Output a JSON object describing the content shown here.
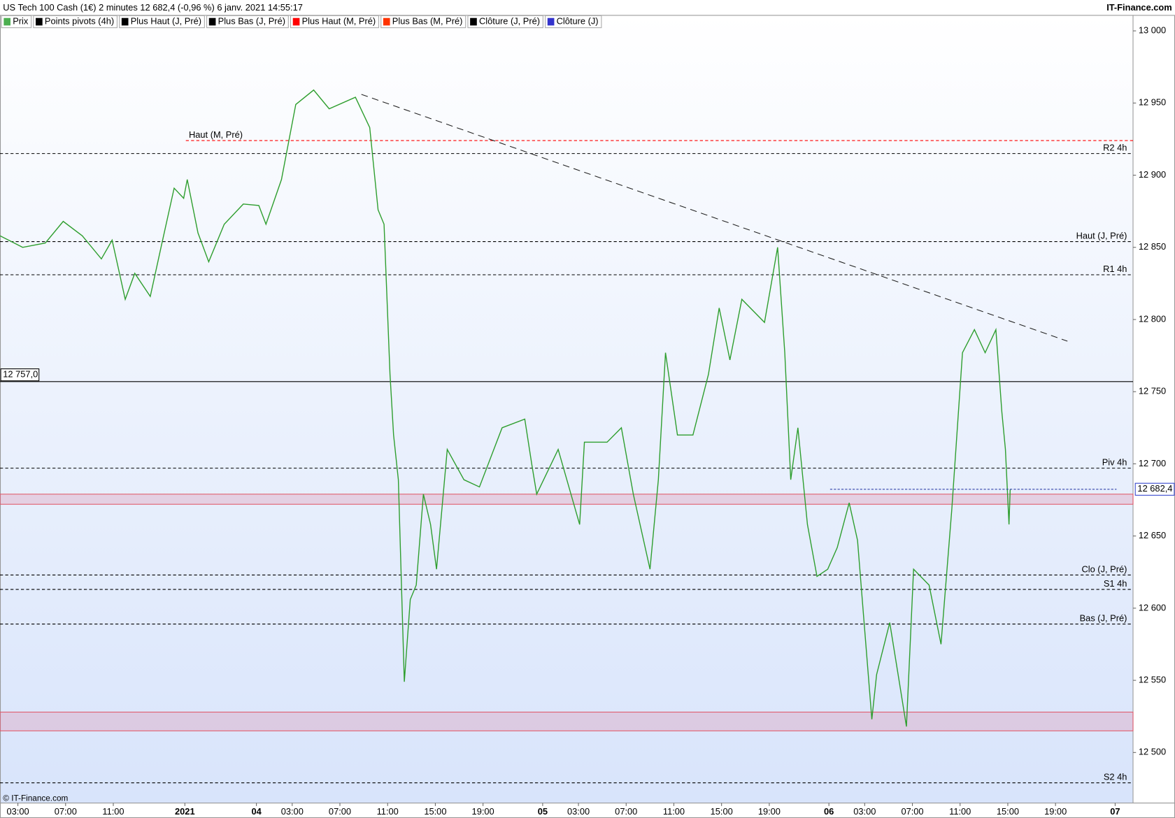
{
  "chart_data": {
    "type": "line",
    "title": "US Tech 100 Cash (1€) 2 minutes 12 682,4 (-0,96 %) 6 janv. 2021 14:55:17",
    "brand": "IT-Finance.com",
    "copyright": "© IT-Finance.com",
    "legend": [
      {
        "name": "Prix",
        "color": "#4caf50"
      },
      {
        "name": "Points pivots (4h)",
        "color": "#000000"
      },
      {
        "name": "Plus Haut (J, Pré)",
        "color": "#000000"
      },
      {
        "name": "Plus Bas (J, Pré)",
        "color": "#000000"
      },
      {
        "name": "Plus Haut (M, Pré)",
        "color": "#ff0000"
      },
      {
        "name": "Plus Bas (M, Pré)",
        "color": "#ff3300"
      },
      {
        "name": "Clôture (J, Pré)",
        "color": "#000000"
      },
      {
        "name": "Clôture (J)",
        "color": "#3333cc"
      }
    ],
    "xlim": [
      0,
      95
    ],
    "xticks": [
      {
        "value": 1.5,
        "label": "03:00"
      },
      {
        "value": 5.5,
        "label": "07:00"
      },
      {
        "value": 9.5,
        "label": "11:00"
      },
      {
        "value": 15.5,
        "label": "2021"
      },
      {
        "value": 21.5,
        "label": "04"
      },
      {
        "value": 24.5,
        "label": "03:00"
      },
      {
        "value": 28.5,
        "label": "07:00"
      },
      {
        "value": 32.5,
        "label": "11:00"
      },
      {
        "value": 36.5,
        "label": "15:00"
      },
      {
        "value": 40.5,
        "label": "19:00"
      },
      {
        "value": 45.5,
        "label": "05"
      },
      {
        "value": 48.5,
        "label": "03:00"
      },
      {
        "value": 52.5,
        "label": "07:00"
      },
      {
        "value": 56.5,
        "label": "11:00"
      },
      {
        "value": 60.5,
        "label": "15:00"
      },
      {
        "value": 64.5,
        "label": "19:00"
      },
      {
        "value": 69.5,
        "label": "06"
      },
      {
        "value": 72.5,
        "label": "03:00"
      },
      {
        "value": 76.5,
        "label": "07:00"
      },
      {
        "value": 80.5,
        "label": "11:00"
      },
      {
        "value": 84.5,
        "label": "15:00"
      },
      {
        "value": 88.5,
        "label": "19:00"
      },
      {
        "value": 93.5,
        "label": "07"
      }
    ],
    "ylim": [
      12465,
      13011
    ],
    "yticks": [
      {
        "value": 12500,
        "label": "12 500"
      },
      {
        "value": 12550,
        "label": "12 550"
      },
      {
        "value": 12600,
        "label": "12 600"
      },
      {
        "value": 12650,
        "label": "12 650"
      },
      {
        "value": 12700,
        "label": "12 700"
      },
      {
        "value": 12750,
        "label": "12 750"
      },
      {
        "value": 12800,
        "label": "12 800"
      },
      {
        "value": 12850,
        "label": "12 850"
      },
      {
        "value": 12900,
        "label": "12 900"
      },
      {
        "value": 12950,
        "label": "12 950"
      },
      {
        "value": 13000,
        "label": "13 000"
      }
    ],
    "series": [
      {
        "name": "Prix",
        "color": "#2e9e2e",
        "x": [
          0,
          1.9,
          3.8,
          5.3,
          6.9,
          8.5,
          9.4,
          10.5,
          11.3,
          12.6,
          13.5,
          14.6,
          15.4,
          15.7,
          16.6,
          17.5,
          18.8,
          20.4,
          21.7,
          22.3,
          23.6,
          24.8,
          26.3,
          27.6,
          29.8,
          31.0,
          31.7,
          32.2,
          32.7,
          33.0,
          33.4,
          33.9,
          34.4,
          34.9,
          35.5,
          36.1,
          36.6,
          37.5,
          38.9,
          40.2,
          42.1,
          44.0,
          44.6,
          45.0,
          46.8,
          48.6,
          49.0,
          50.9,
          52.1,
          53.1,
          54.5,
          55.2,
          55.8,
          56.8,
          58.1,
          59.4,
          60.3,
          61.2,
          62.2,
          64.1,
          65.2,
          65.8,
          66.3,
          66.9,
          67.7,
          68.5,
          69.4,
          70.2,
          71.2,
          71.9,
          73.1,
          73.5,
          74.6,
          75.4,
          76.0,
          76.6,
          77.9,
          78.9,
          79.8,
          80.7,
          81.7,
          82.6,
          83.5,
          84.0,
          84.3,
          84.6,
          84.7
        ],
        "values": [
          12858,
          12850,
          12853,
          12868,
          12858,
          12842,
          12855,
          12814,
          12832,
          12816,
          12850,
          12891,
          12884,
          12897,
          12860,
          12840,
          12866,
          12880,
          12879,
          12866,
          12897,
          12949,
          12959,
          12946,
          12954,
          12933,
          12876,
          12866,
          12762,
          12720,
          12689,
          12549,
          12606,
          12616,
          12679,
          12658,
          12627,
          12710,
          12689,
          12684,
          12725,
          12731,
          12699,
          12679,
          12710,
          12658,
          12715,
          12715,
          12725,
          12679,
          12627,
          12689,
          12777,
          12720,
          12720,
          12762,
          12808,
          12772,
          12814,
          12798,
          12850,
          12777,
          12689,
          12725,
          12658,
          12622,
          12627,
          12642,
          12673,
          12647,
          12523,
          12554,
          12590,
          12549,
          12518,
          12627,
          12616,
          12575,
          12668,
          12777,
          12793,
          12777,
          12793,
          12736,
          12710,
          12658,
          12682.4
        ]
      }
    ],
    "levels": [
      {
        "name": "Haut (M, Pré)",
        "value": 12924,
        "color": "#ff0000",
        "side": "left"
      },
      {
        "name": "R2 4h",
        "value": 12915,
        "color": "#000000",
        "side": "right"
      },
      {
        "name": "Haut (J, Pré)",
        "value": 12854,
        "color": "#000000",
        "side": "right"
      },
      {
        "name": "R1 4h",
        "value": 12831,
        "color": "#000000",
        "side": "right"
      },
      {
        "name": "Piv 4h",
        "value": 12697,
        "color": "#000000",
        "side": "right"
      },
      {
        "name": "Clo (J, Pré)",
        "value": 12623,
        "color": "#000000",
        "side": "right"
      },
      {
        "name": "S1 4h",
        "value": 12613,
        "color": "#000000",
        "side": "right"
      },
      {
        "name": "Bas (J, Pré)",
        "value": 12589,
        "color": "#000000",
        "side": "right"
      },
      {
        "name": "S2 4h",
        "value": 12479,
        "color": "#000000",
        "side": "right"
      }
    ],
    "zones": [
      {
        "range": [
          12672,
          12679
        ]
      },
      {
        "range": [
          12515,
          12528
        ]
      }
    ],
    "marker_line": {
      "value": 12757,
      "label": "12 757,0"
    },
    "last": {
      "value": 12682.4,
      "label": "12 682,4",
      "from_x": 69.6
    },
    "trendline": {
      "x": [
        30.3,
        89.5
      ],
      "y": [
        12956,
        12785
      ]
    }
  }
}
